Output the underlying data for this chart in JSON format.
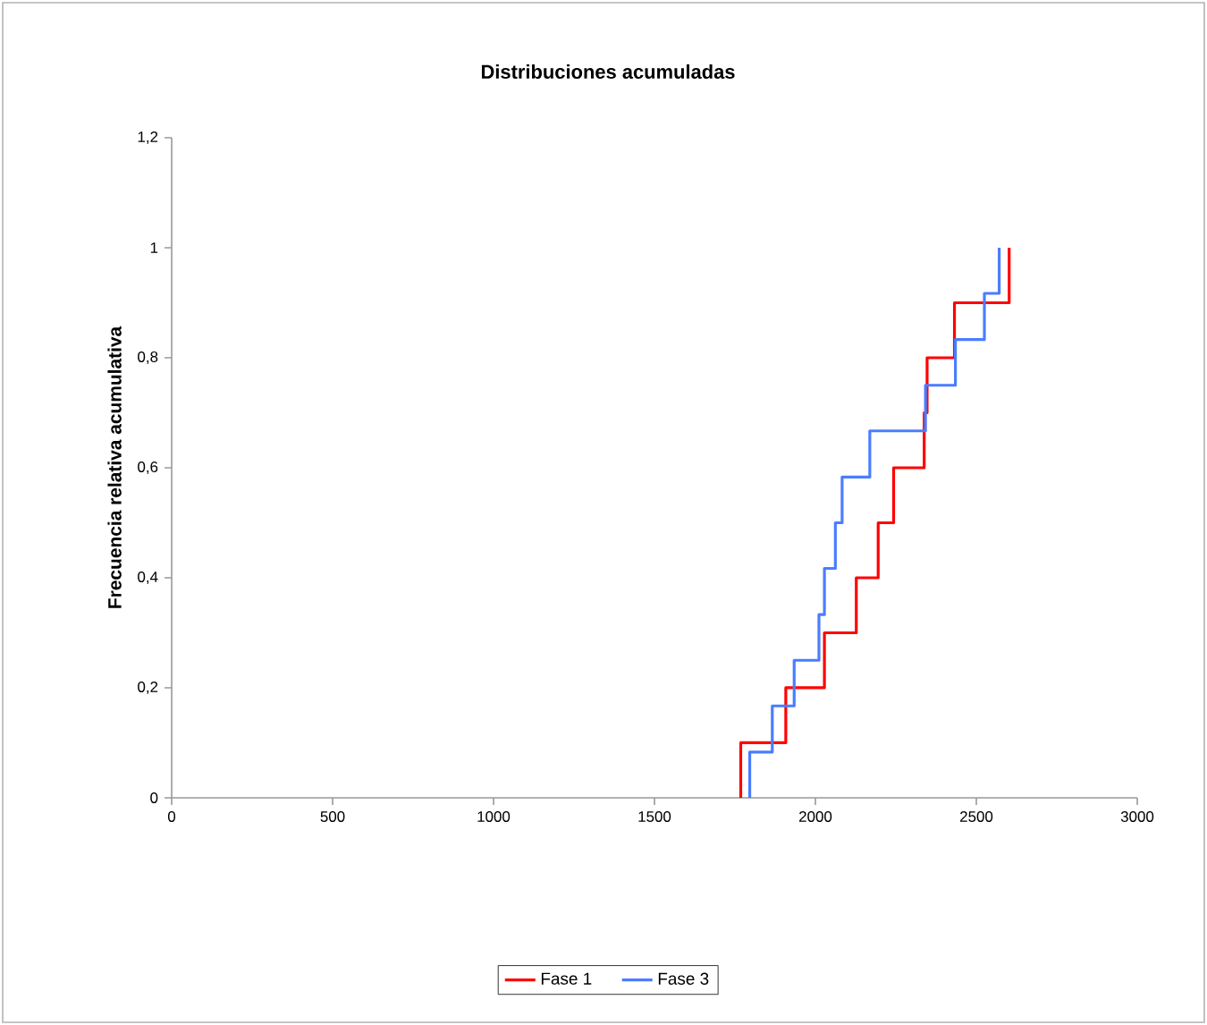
{
  "chart_data": {
    "type": "step",
    "title": "Distribuciones acumuladas",
    "ylabel": "Frecuencia relativa acumulativa",
    "xlim": [
      0,
      3000
    ],
    "xticks": [
      0,
      500,
      1000,
      1500,
      2000,
      2500,
      3000
    ],
    "ylim": [
      0,
      1.2
    ],
    "yticks": [
      0,
      {
        "value": 0.2,
        "label": "0,2"
      },
      {
        "value": 0.4,
        "label": "0,4"
      },
      {
        "value": 0.6,
        "label": "0,6"
      },
      {
        "value": 0.8,
        "label": "0,8"
      },
      1,
      {
        "value": 1.2,
        "label": "1,2"
      }
    ],
    "grid": false,
    "legend": "bottom",
    "series": [
      {
        "name": "Fase 1",
        "color": "#ff0000",
        "x": [
          1768,
          1768,
          1908,
          2028,
          2127,
          2195,
          2243,
          2338,
          2347,
          2432,
          2602
        ],
        "values": [
          0,
          0.1,
          0.2,
          0.3,
          0.4,
          0.5,
          0.6,
          0.7,
          0.8,
          0.9,
          1
        ]
      },
      {
        "name": "Fase 3",
        "color": "#4a7dff",
        "x": [
          1796,
          1796,
          1866,
          1934,
          2011,
          2028,
          2062,
          2083,
          2169,
          2342,
          2435,
          2525,
          2571
        ],
        "values": [
          0,
          0.083,
          0.167,
          0.25,
          0.333,
          0.417,
          0.5,
          0.583,
          0.667,
          0.75,
          0.833,
          0.917,
          1
        ]
      }
    ]
  }
}
